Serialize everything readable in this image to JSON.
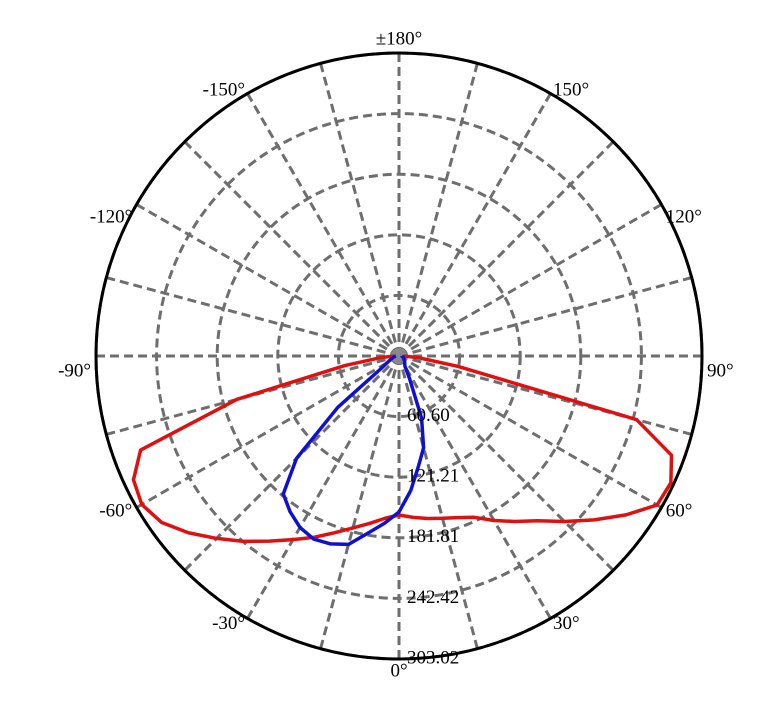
{
  "chart_data": {
    "type": "polar",
    "x": [
      -90,
      -85,
      -80,
      -75,
      -70,
      -65,
      -60,
      -55,
      -50,
      -45,
      -40,
      -35,
      -30,
      -25,
      -20,
      -15,
      -10,
      -5,
      0,
      5,
      10,
      15,
      20,
      25,
      30,
      35,
      40,
      45,
      50,
      55,
      60,
      65,
      70,
      75,
      80,
      85,
      90
    ],
    "series": [
      {
        "color": "#e01010",
        "values": [
          5,
          18,
          55,
          168,
          275,
          293,
          297,
          290,
          275,
          258,
          242,
          226,
          212,
          200,
          188,
          178,
          170,
          163,
          159,
          162,
          165,
          168,
          172,
          178,
          190,
          202,
          215,
          234,
          255,
          277,
          298,
          300,
          290,
          246,
          60,
          20,
          5
        ]
      },
      {
        "color": "#1010d0",
        "values": [
          3,
          4,
          5,
          6,
          8,
          10,
          14,
          22,
          80,
          145,
          180,
          190,
          198,
          202,
          200,
          195,
          180,
          168,
          156,
          135,
          112,
          95,
          66,
          25,
          12,
          10,
          9,
          8,
          7,
          6,
          6,
          5,
          5,
          4,
          4,
          3,
          3
        ]
      }
    ],
    "xticks": [
      {
        "value": -150,
        "label": "-150°"
      },
      {
        "value": -120,
        "label": "-120°"
      },
      {
        "value": -90,
        "label": "-90°"
      },
      {
        "value": -60,
        "label": "-60°"
      },
      {
        "value": -30,
        "label": "-30°"
      },
      {
        "value": 0,
        "label": "0°"
      },
      {
        "value": 30,
        "label": "30°"
      },
      {
        "value": 60,
        "label": "60°"
      },
      {
        "value": 90,
        "label": "90°"
      },
      {
        "value": 120,
        "label": "120°"
      },
      {
        "value": 150,
        "label": "150°"
      },
      {
        "value": 180,
        "label": "±180°"
      }
    ],
    "ylim": [
      0,
      303.02
    ],
    "yticks": [
      {
        "value": 60.6,
        "label": "60.60"
      },
      121.21,
      181.81,
      242.42,
      303.02
    ]
  }
}
